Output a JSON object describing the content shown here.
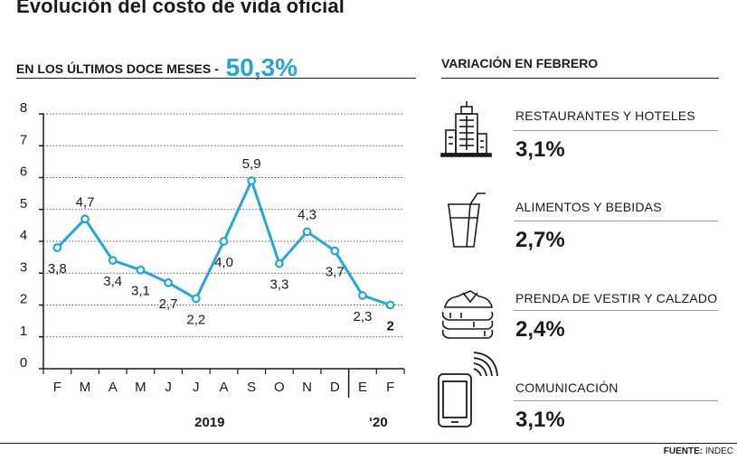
{
  "title": "Evolución del costo de vida oficial",
  "left_header": {
    "text": "EN LOS ÚLTIMOS DOCE MESES -",
    "value": "50,3%"
  },
  "right_header": {
    "text": "VARIACIÓN EN FEBRERO"
  },
  "chart_data": {
    "type": "line",
    "categories": [
      "F",
      "M",
      "A",
      "M",
      "J",
      "J",
      "A",
      "S",
      "O",
      "N",
      "D",
      "E",
      "F"
    ],
    "values": [
      3.8,
      4.7,
      3.4,
      3.1,
      2.7,
      2.2,
      4.0,
      5.9,
      3.3,
      4.3,
      3.7,
      2.3,
      2.0
    ],
    "value_labels": [
      "3,8",
      "4,7",
      "3,4",
      "3,1",
      "2,7",
      "2,2",
      "4,0",
      "5,9",
      "3,3",
      "4,3",
      "3,7",
      "2,3",
      "2"
    ],
    "y_ticks": [
      "0",
      "1",
      "2",
      "3",
      "4",
      "5",
      "6",
      "7",
      "8"
    ],
    "ylim": [
      0,
      8
    ],
    "year_labels": [
      "2019",
      "‘20"
    ],
    "grid": "dotted horizontal",
    "line_color": "#24a6d9"
  },
  "categories": [
    {
      "label": "RESTAURANTES Y HOTELES",
      "value": "3,1%",
      "icon": "building-icon"
    },
    {
      "label": "ALIMENTOS Y BEBIDAS",
      "value": "2,7%",
      "icon": "drink-glass-icon"
    },
    {
      "label": "PRENDA DE VESTIR Y CALZADO",
      "value": "2,4%",
      "icon": "folded-clothes-icon"
    },
    {
      "label": "COMUNICACIÓN",
      "value": "3,1%",
      "icon": "mobile-phone-icon"
    }
  ],
  "source": {
    "label": "FUENTE:",
    "name": "INDEC"
  }
}
